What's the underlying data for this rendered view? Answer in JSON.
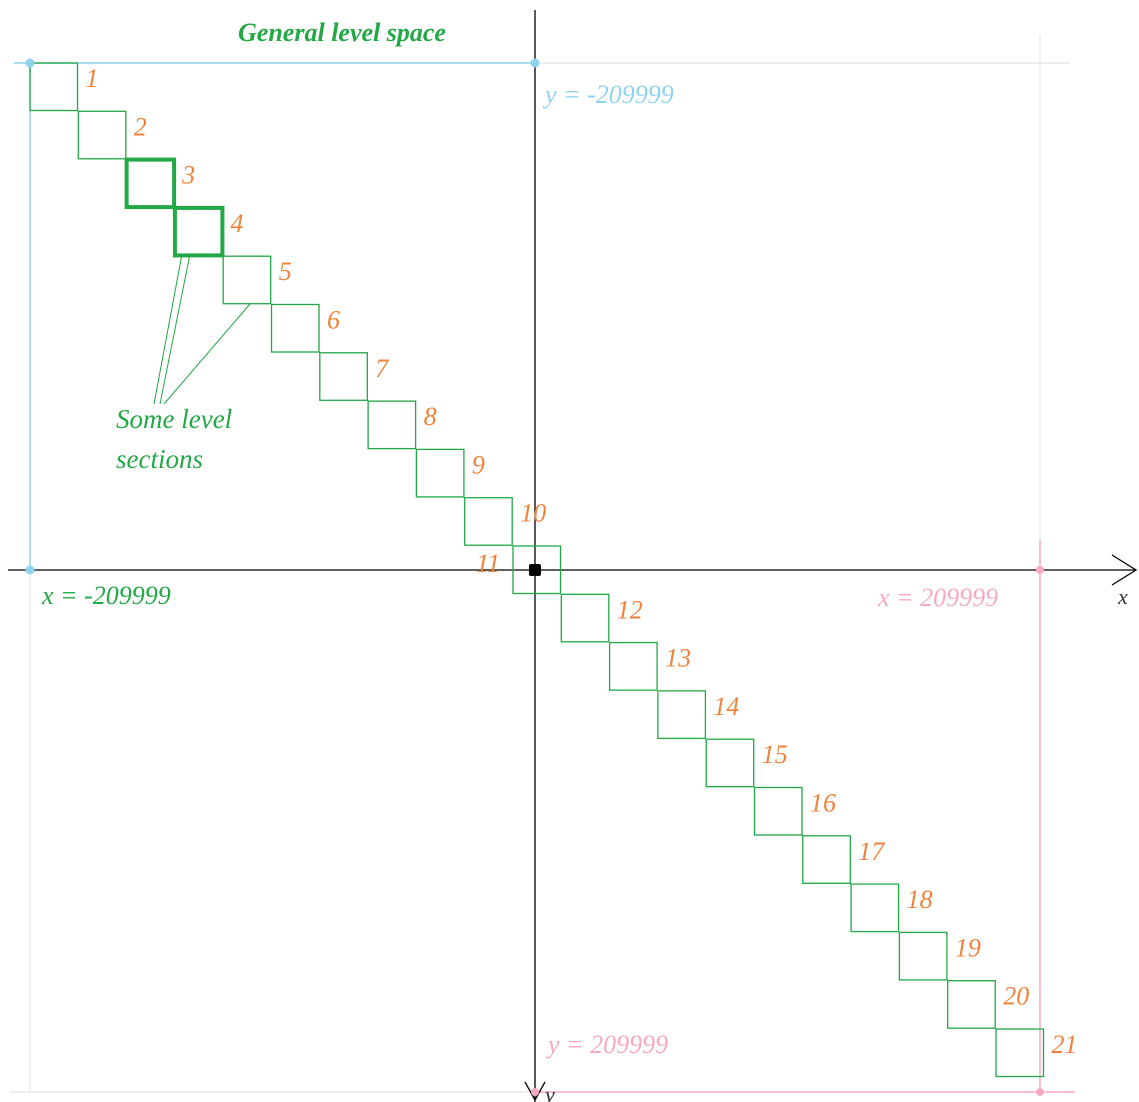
{
  "title": "General level space",
  "annotation": [
    "Some level",
    "sections"
  ],
  "axes": {
    "x_label": "x",
    "y_label": "y"
  },
  "bounds": {
    "y_min_label": "y = -209999",
    "y_max_label": "y = 209999",
    "x_min_label": "x = -209999",
    "x_max_label": "x = 209999"
  },
  "section_labels": [
    "1",
    "2",
    "3",
    "4",
    "5",
    "6",
    "7",
    "8",
    "9",
    "10",
    "11",
    "12",
    "13",
    "14",
    "15",
    "16",
    "17",
    "18",
    "19",
    "20",
    "21"
  ],
  "highlighted_sections": [
    3,
    4
  ],
  "colors": {
    "section_stroke": "#22a845",
    "section_label": "#f0823c",
    "top_left_bound": "#8fd3ef",
    "bottom_right_bound": "#f7a9c2",
    "faint_bound": "#e4e4e4",
    "axis": "#000000",
    "title": "#22a845"
  }
}
